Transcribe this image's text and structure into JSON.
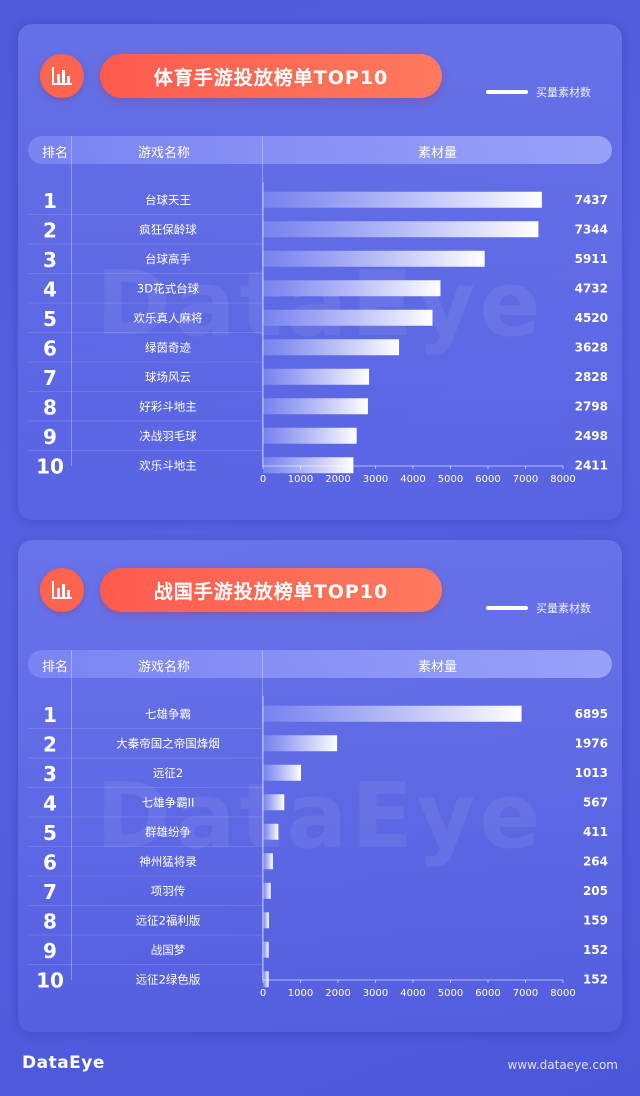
{
  "chart_data": [
    {
      "type": "bar",
      "title": "体育手游投放榜单TOP10",
      "legend": "买量素材数",
      "columns": {
        "rank": "排名",
        "name": "游戏名称",
        "value": "素材量"
      },
      "categories": [
        "台球天王",
        "疯狂保龄球",
        "台球高手",
        "3D花式台球",
        "欢乐真人麻将",
        "绿茵奇迹",
        "球场风云",
        "好彩斗地主",
        "决战羽毛球",
        "欢乐斗地主"
      ],
      "values": [
        7437,
        7344,
        5911,
        4732,
        4520,
        3628,
        2828,
        2798,
        2498,
        2411
      ],
      "ranks": [
        "1",
        "2",
        "3",
        "4",
        "5",
        "6",
        "7",
        "8",
        "9",
        "10"
      ],
      "xlim": [
        0,
        8000
      ],
      "ticks": [
        "0",
        "1000",
        "2000",
        "3000",
        "4000",
        "5000",
        "6000",
        "7000",
        "8000"
      ],
      "watermark": "DataEye"
    },
    {
      "type": "bar",
      "title": "战国手游投放榜单TOP10",
      "legend": "买量素材数",
      "columns": {
        "rank": "排名",
        "name": "游戏名称",
        "value": "素材量"
      },
      "categories": [
        "七雄争霸",
        "大秦帝国之帝国烽烟",
        "远征2",
        "七雄争霸II",
        "群雄纷争",
        "神州猛将录",
        "项羽传",
        "远征2福利版",
        "战国梦",
        "远征2绿色版"
      ],
      "values": [
        6895,
        1976,
        1013,
        567,
        411,
        264,
        205,
        159,
        152,
        152
      ],
      "ranks": [
        "1",
        "2",
        "3",
        "4",
        "5",
        "6",
        "7",
        "8",
        "9",
        "10"
      ],
      "xlim": [
        0,
        8000
      ],
      "ticks": [
        "0",
        "1000",
        "2000",
        "3000",
        "4000",
        "5000",
        "6000",
        "7000",
        "8000"
      ],
      "watermark": "DataEye"
    }
  ],
  "footer": {
    "logo": "DataEye",
    "url": "www.dataeye.com"
  },
  "icon": "bar-chart-icon"
}
